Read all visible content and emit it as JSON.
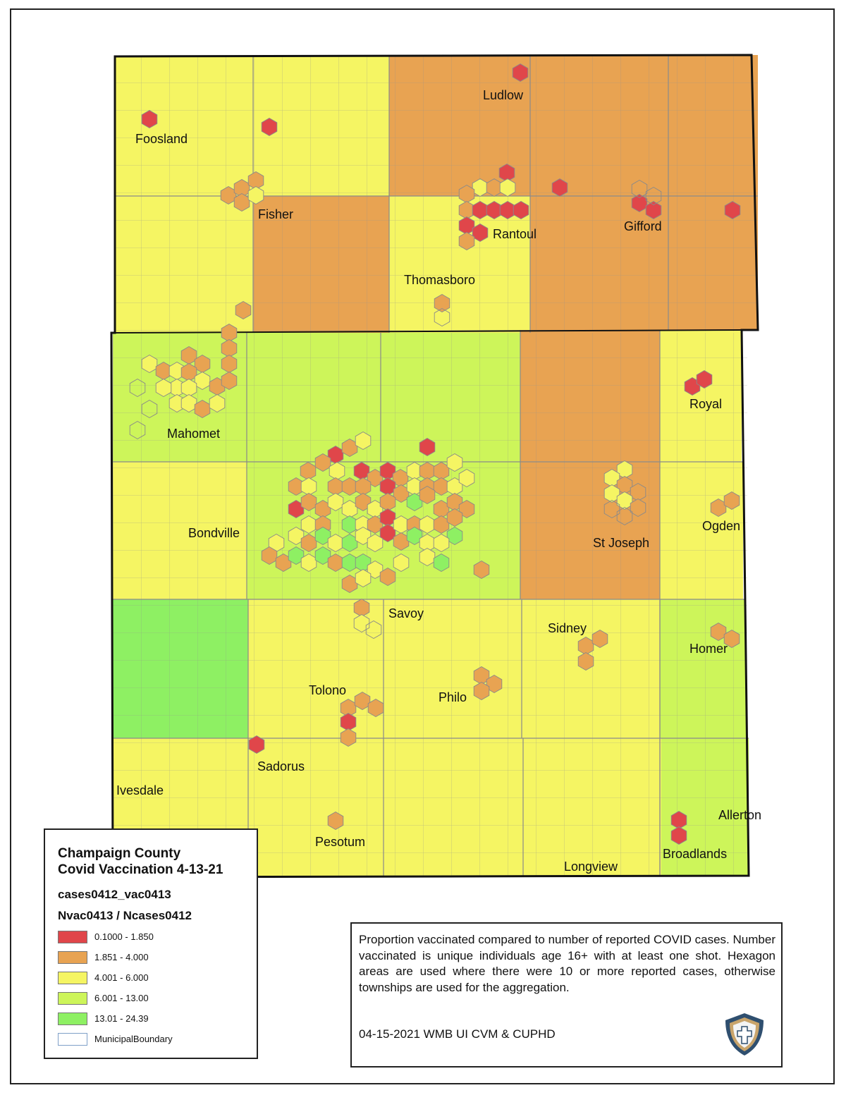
{
  "places": [
    {
      "name": "Foosland",
      "label": "Foosland"
    },
    {
      "name": "Fisher",
      "label": "Fisher"
    },
    {
      "name": "Ludlow",
      "label": "Ludlow"
    },
    {
      "name": "Rantoul",
      "label": "Rantoul"
    },
    {
      "name": "Gifford",
      "label": "Gifford"
    },
    {
      "name": "Thomasboro",
      "label": "Thomasboro"
    },
    {
      "name": "Royal",
      "label": "Royal"
    },
    {
      "name": "Mahomet",
      "label": "Mahomet"
    },
    {
      "name": "Bondville",
      "label": "Bondville"
    },
    {
      "name": "St Joseph",
      "label": "St Joseph"
    },
    {
      "name": "Ogden",
      "label": "Ogden"
    },
    {
      "name": "Savoy",
      "label": "Savoy"
    },
    {
      "name": "Sidney",
      "label": "Sidney"
    },
    {
      "name": "Homer",
      "label": "Homer"
    },
    {
      "name": "Tolono",
      "label": "Tolono"
    },
    {
      "name": "Philo",
      "label": "Philo"
    },
    {
      "name": "Sadorus",
      "label": "Sadorus"
    },
    {
      "name": "Ivesdale",
      "label": "Ivesdale"
    },
    {
      "name": "Pesotum",
      "label": "Pesotum"
    },
    {
      "name": "Allerton",
      "label": "Allerton"
    },
    {
      "name": "Broadlands",
      "label": "Broadlands"
    },
    {
      "name": "Longview",
      "label": "Longview"
    }
  ],
  "legend": {
    "title_line1": "Champaign County",
    "title_line2": "Covid Vaccination 4-13-21",
    "layer_name": "cases0412_vac0413",
    "field_name": "Nvac0413 / Ncases0412",
    "classes": [
      {
        "label": "0.1000 - 1.850",
        "color": "#e0464a"
      },
      {
        "label": "1.851 - 4.000",
        "color": "#e8a352"
      },
      {
        "label": "4.001 - 6.000",
        "color": "#f5f563"
      },
      {
        "label": "6.001 - 13.00",
        "color": "#cdf55a"
      },
      {
        "label": "13.01 - 24.39",
        "color": "#8ef063"
      },
      {
        "label": "MunicipalBoundary",
        "color": "#ffffff"
      }
    ]
  },
  "note": {
    "description": "Proportion vaccinated compared to number of reported COVID cases. Number vaccinated is unique individuals age 16+ with at least one shot. Hexagon areas are used where there were 10 or more reported cases, otherwise townships are used for the aggregation.",
    "credit": "04-15-2021 WMB UI CVM & CUPHD"
  },
  "colors": {
    "class1": "#e0464a",
    "class2": "#e8a352",
    "class3": "#f5f563",
    "class4": "#cdf55a",
    "class5": "#8ef063",
    "border": "#111111",
    "road": "#9a9a9a"
  }
}
